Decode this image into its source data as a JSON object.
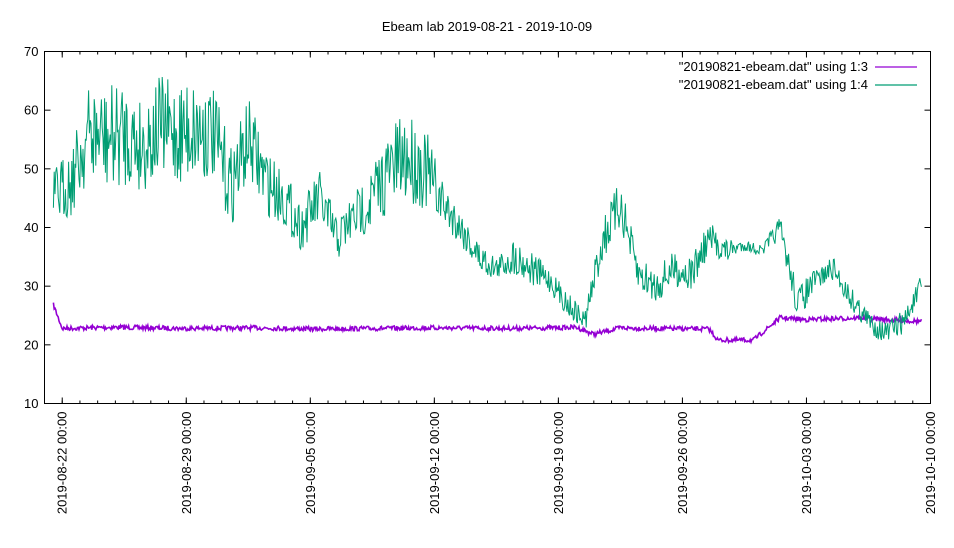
{
  "chart_data": {
    "type": "line",
    "title": "Ebeam lab 2019-08-21 - 2019-10-09",
    "xlabel": "",
    "ylabel": "",
    "ylim": [
      10,
      70
    ],
    "yticks": [
      10,
      20,
      30,
      40,
      50,
      60,
      70
    ],
    "xlim": [
      "2019-08-21 00:00",
      "2019-10-10 00:00"
    ],
    "xticks": [
      "2019-08-22 00:00",
      "2019-08-29 00:00",
      "2019-09-05 00:00",
      "2019-09-12 00:00",
      "2019-09-19 00:00",
      "2019-09-26 00:00",
      "2019-10-03 00:00",
      "2019-10-10 00:00"
    ],
    "grid": false,
    "legend_position": "top-right",
    "series": [
      {
        "name": "\"20190821-ebeam.dat\" using 1:3",
        "color": "#9400d3",
        "x": [
          "2019-08-21 12:00",
          "2019-08-22 00:00",
          "2019-08-25 00:00",
          "2019-08-29 00:00",
          "2019-09-02 00:00",
          "2019-09-05 00:00",
          "2019-09-09 00:00",
          "2019-09-12 00:00",
          "2019-09-16 00:00",
          "2019-09-19 00:00",
          "2019-09-20 00:00",
          "2019-09-21 00:00",
          "2019-09-22 12:00",
          "2019-09-24 00:00",
          "2019-09-27 12:00",
          "2019-09-28 00:00",
          "2019-09-30 00:00",
          "2019-10-01 12:00",
          "2019-10-03 00:00",
          "2019-10-06 00:00",
          "2019-10-08 00:00",
          "2019-10-09 12:00"
        ],
        "values": [
          26.8,
          22.8,
          23.0,
          22.8,
          22.9,
          22.7,
          22.8,
          22.9,
          22.8,
          22.9,
          23.0,
          21.8,
          22.9,
          22.8,
          22.7,
          20.8,
          20.8,
          24.6,
          24.3,
          24.6,
          24.2,
          24.0
        ]
      },
      {
        "name": "\"20190821-ebeam.dat\" using 1:4",
        "color": "#009e73",
        "x": [
          "2019-08-21 12:00",
          "2019-08-22 12:00",
          "2019-08-23 12:00",
          "2019-08-24 12:00",
          "2019-08-25 12:00",
          "2019-08-26 12:00",
          "2019-08-27 12:00",
          "2019-08-28 12:00",
          "2019-08-29 12:00",
          "2019-08-30 12:00",
          "2019-08-31 12:00",
          "2019-09-01 12:00",
          "2019-09-02 12:00",
          "2019-09-03 12:00",
          "2019-09-04 12:00",
          "2019-09-05 12:00",
          "2019-09-06 12:00",
          "2019-09-07 12:00",
          "2019-09-08 12:00",
          "2019-09-09 12:00",
          "2019-09-10 12:00",
          "2019-09-11 12:00",
          "2019-09-12 12:00",
          "2019-09-13 12:00",
          "2019-09-14 12:00",
          "2019-09-15 12:00",
          "2019-09-16 12:00",
          "2019-09-17 12:00",
          "2019-09-18 12:00",
          "2019-09-19 12:00",
          "2019-09-20 12:00",
          "2019-09-21 12:00",
          "2019-09-22 12:00",
          "2019-09-23 12:00",
          "2019-09-24 12:00",
          "2019-09-25 12:00",
          "2019-09-26 12:00",
          "2019-09-27 12:00",
          "2019-09-28 12:00",
          "2019-09-29 12:00",
          "2019-09-30 12:00",
          "2019-10-01 12:00",
          "2019-10-02 12:00",
          "2019-10-03 12:00",
          "2019-10-04 12:00",
          "2019-10-05 12:00",
          "2019-10-06 12:00",
          "2019-10-07 12:00",
          "2019-10-08 12:00",
          "2019-10-09 12:00"
        ],
        "values": [
          45,
          48,
          56,
          55,
          56,
          54,
          57,
          56,
          57,
          56,
          47,
          55,
          48,
          45,
          40,
          45,
          38,
          42,
          45,
          50,
          52,
          50,
          44,
          40,
          35,
          33,
          35,
          33,
          31,
          27,
          24,
          38,
          44,
          32,
          30,
          33,
          32,
          38,
          36,
          37,
          36,
          40,
          27,
          31,
          33,
          28,
          24,
          22,
          24,
          30
        ],
        "band_halfwidth": [
          5,
          6,
          8,
          9,
          9,
          8,
          9,
          9,
          9,
          8,
          7,
          7,
          6,
          5,
          4,
          5,
          4,
          4,
          6,
          7,
          8,
          7,
          4,
          3,
          3,
          2,
          3,
          3,
          2,
          2,
          2,
          4,
          4,
          3,
          3,
          3,
          3,
          3,
          2,
          1,
          1,
          2,
          3,
          2,
          2,
          2,
          2,
          2,
          2,
          2
        ]
      }
    ]
  }
}
